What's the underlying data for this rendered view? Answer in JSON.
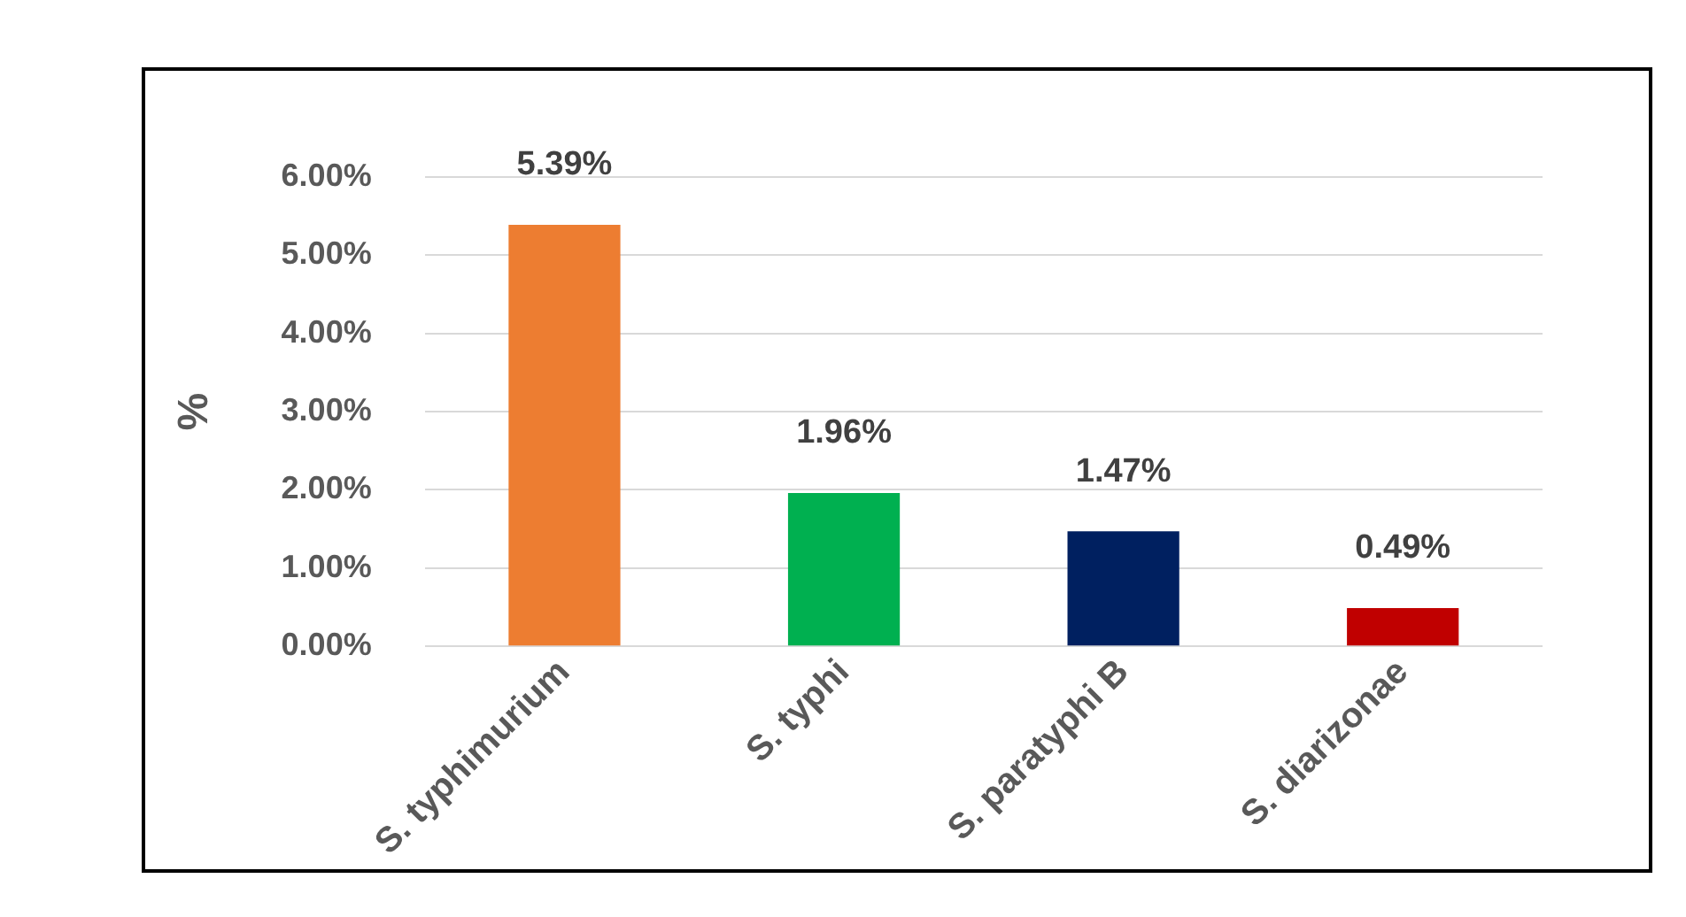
{
  "chart_data": {
    "type": "bar",
    "ylabel": "%",
    "categories": [
      "S. typhimurium",
      "S. typhi",
      "S. paratyphi B",
      "S. diarizonae"
    ],
    "values": [
      5.39,
      1.96,
      1.47,
      0.49
    ],
    "colors": [
      "#ed7d31",
      "#00b050",
      "#002060",
      "#c00000"
    ],
    "value_labels": [
      "5.39%",
      "1.96%",
      "1.47%",
      "0.49%"
    ],
    "ylim": [
      0,
      6
    ],
    "yticks": [
      {
        "value": 0,
        "label": "0.00%"
      },
      {
        "value": 1,
        "label": "1.00%"
      },
      {
        "value": 2,
        "label": "2.00%"
      },
      {
        "value": 3,
        "label": "3.00%"
      },
      {
        "value": 4,
        "label": "4.00%"
      },
      {
        "value": 5,
        "label": "5.00%"
      },
      {
        "value": 6,
        "label": "6.00%"
      }
    ],
    "grid": "y",
    "legend": false
  }
}
